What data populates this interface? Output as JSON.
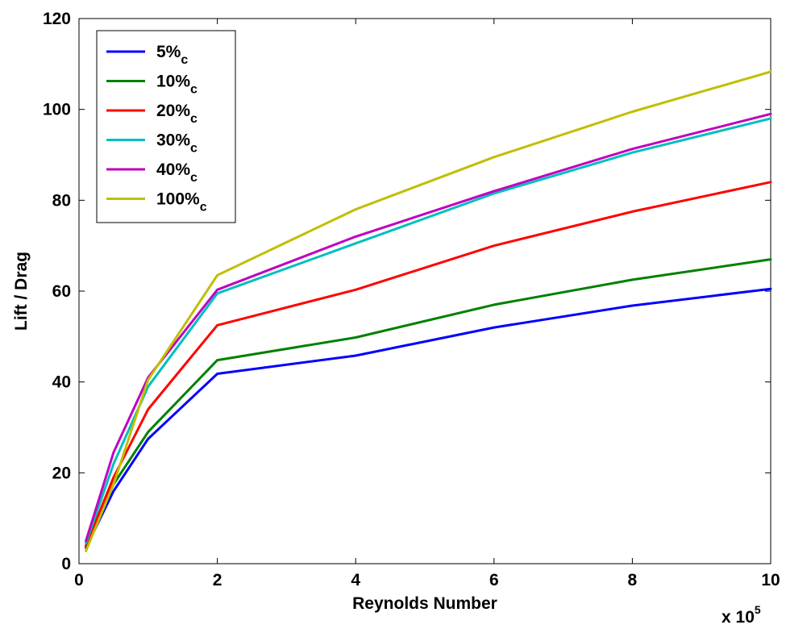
{
  "chart_data": {
    "type": "line",
    "title": "",
    "xlabel": "Reynolds Number",
    "ylabel": "Lift / Drag",
    "x_multiplier": {
      "base": "x 10",
      "exponent": "5"
    },
    "xlim": [
      0,
      10
    ],
    "ylim": [
      0,
      120
    ],
    "x_ticks": [
      "0",
      "2",
      "4",
      "6",
      "8",
      "10"
    ],
    "y_ticks": [
      "0",
      "20",
      "40",
      "60",
      "80",
      "100",
      "120"
    ],
    "grid": false,
    "legend_position": "top-left",
    "x": [
      0.1,
      0.5,
      1,
      2,
      4,
      6,
      8,
      10
    ],
    "series": [
      {
        "name": "5%",
        "sub": "c",
        "color": "#0000ff",
        "values": [
          3.5,
          16,
          27.5,
          41.8,
          45.8,
          52,
          56.8,
          60.5
        ]
      },
      {
        "name": "10%",
        "sub": "c",
        "color": "#008000",
        "values": [
          3.7,
          17.5,
          29,
          44.8,
          49.8,
          57,
          62.5,
          67
        ]
      },
      {
        "name": "20%",
        "sub": "c",
        "color": "#ff0000",
        "values": [
          4,
          19,
          34,
          52.5,
          60.3,
          70,
          77.5,
          84
        ]
      },
      {
        "name": "30%",
        "sub": "c",
        "color": "#00bfbf",
        "values": [
          4.5,
          22,
          39,
          59.5,
          70.5,
          81.5,
          90.5,
          98
        ]
      },
      {
        "name": "40%",
        "sub": "c",
        "color": "#bf00bf",
        "values": [
          5,
          24.5,
          41,
          60.3,
          72,
          82,
          91.3,
          99
        ]
      },
      {
        "name": "100%",
        "sub": "c",
        "color": "#bfbf00",
        "values": [
          2.8,
          17.5,
          40.5,
          63.5,
          78,
          89.5,
          99.5,
          108.3
        ]
      }
    ]
  }
}
